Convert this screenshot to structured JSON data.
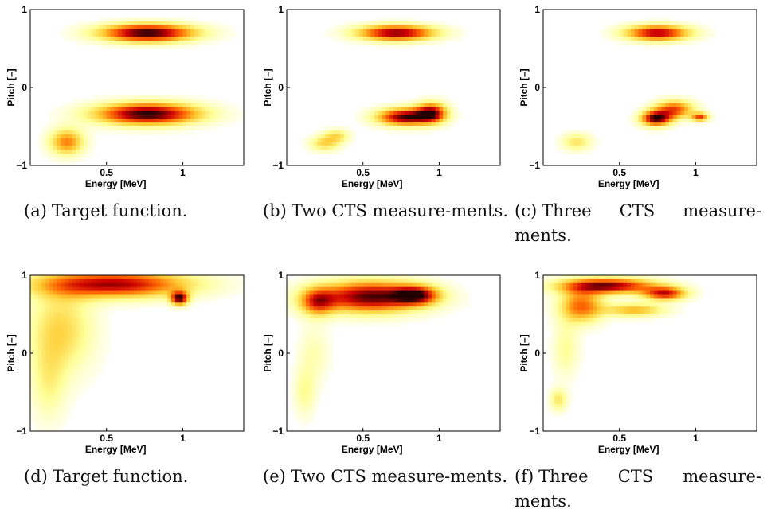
{
  "figure": {
    "panels": [
      {
        "id": "a",
        "label": "(a)",
        "caption": "Target function."
      },
      {
        "id": "b",
        "label": "(b)",
        "caption": "Two CTS measure-ments."
      },
      {
        "id": "c",
        "label": "(c)",
        "caption": "Three CTS measure-ments."
      },
      {
        "id": "d",
        "label": "(d)",
        "caption": "Target function."
      },
      {
        "id": "e",
        "label": "(e)",
        "caption": "Two CTS measure-ments."
      },
      {
        "id": "f",
        "label": "(f)",
        "caption": "Three CTS measure-ments."
      }
    ]
  },
  "chart_data": [
    {
      "type": "heatmap",
      "panel": "a",
      "xlabel": "Energy [MeV]",
      "ylabel": "Pitch [–]",
      "xlim": [
        0,
        1.4
      ],
      "ylim": [
        -1,
        1
      ],
      "xticks": [
        0.5,
        1
      ],
      "yticks": [
        -1,
        0,
        1
      ],
      "xticklabels": [
        "0.5",
        "1"
      ],
      "yticklabels": [
        "−1",
        "0",
        "1"
      ],
      "colormap": [
        "#ffffff",
        "#ffff99",
        "#ffcc33",
        "#ff6600",
        "#cc0000",
        "#200000"
      ],
      "blobs": [
        {
          "x": 0.77,
          "y": 0.7,
          "sx": 0.22,
          "sy": 0.08,
          "amp": 1.0
        },
        {
          "x": 0.77,
          "y": -0.34,
          "sx": 0.24,
          "sy": 0.1,
          "amp": 1.0
        },
        {
          "x": 0.24,
          "y": -0.7,
          "sx": 0.08,
          "sy": 0.12,
          "amp": 0.55
        }
      ]
    },
    {
      "type": "heatmap",
      "panel": "b",
      "xlabel": "Energy [MeV]",
      "ylabel": "Pitch [–]",
      "xlim": [
        0,
        1.4
      ],
      "ylim": [
        -1,
        1
      ],
      "xticks": [
        0.5,
        1
      ],
      "yticks": [
        -1,
        0,
        1
      ],
      "xticklabels": [
        "0.5",
        "1"
      ],
      "yticklabels": [
        "−1",
        "0",
        "1"
      ],
      "colormap": [
        "#ffffff",
        "#ffff99",
        "#ffcc33",
        "#ff6600",
        "#cc0000",
        "#200000"
      ],
      "blobs": [
        {
          "x": 0.72,
          "y": 0.7,
          "sx": 0.18,
          "sy": 0.07,
          "amp": 0.9
        },
        {
          "x": 0.78,
          "y": -0.38,
          "sx": 0.13,
          "sy": 0.08,
          "amp": 0.95
        },
        {
          "x": 0.95,
          "y": -0.32,
          "sx": 0.07,
          "sy": 0.09,
          "amp": 0.75
        },
        {
          "x": 0.25,
          "y": -0.72,
          "sx": 0.07,
          "sy": 0.07,
          "amp": 0.35
        },
        {
          "x": 0.33,
          "y": -0.62,
          "sx": 0.06,
          "sy": 0.06,
          "amp": 0.3
        }
      ]
    },
    {
      "type": "heatmap",
      "panel": "c",
      "xlabel": "Energy [MeV]",
      "ylabel": "Pitch [–]",
      "xlim": [
        0,
        1.4
      ],
      "ylim": [
        -1,
        1
      ],
      "xticks": [
        0.5,
        1
      ],
      "yticks": [
        -1,
        0,
        1
      ],
      "xticklabels": [
        "0.5",
        "1"
      ],
      "yticklabels": [
        "−1",
        "0",
        "1"
      ],
      "colormap": [
        "#ffffff",
        "#ffff99",
        "#ffcc33",
        "#ff6600",
        "#cc0000",
        "#200000"
      ],
      "blobs": [
        {
          "x": 0.75,
          "y": 0.7,
          "sx": 0.15,
          "sy": 0.07,
          "amp": 0.85
        },
        {
          "x": 0.74,
          "y": -0.4,
          "sx": 0.07,
          "sy": 0.07,
          "amp": 0.95
        },
        {
          "x": 0.86,
          "y": -0.28,
          "sx": 0.09,
          "sy": 0.08,
          "amp": 0.65
        },
        {
          "x": 1.03,
          "y": -0.38,
          "sx": 0.04,
          "sy": 0.04,
          "amp": 0.65
        },
        {
          "x": 0.22,
          "y": -0.7,
          "sx": 0.07,
          "sy": 0.08,
          "amp": 0.3
        }
      ]
    },
    {
      "type": "heatmap",
      "panel": "d",
      "xlabel": "Energy [MeV]",
      "ylabel": "Pitch [–]",
      "xlim": [
        0,
        1.4
      ],
      "ylim": [
        -1,
        1
      ],
      "xticks": [
        0.5,
        1
      ],
      "yticks": [
        -1,
        0,
        1
      ],
      "xticklabels": [
        "0.5",
        "1"
      ],
      "yticklabels": [
        "−1",
        "0",
        "1"
      ],
      "colormap": [
        "#ffffff",
        "#ffff99",
        "#ffcc33",
        "#ff6600",
        "#cc0000",
        "#200000"
      ],
      "blobs": [
        {
          "x": 0.55,
          "y": 0.88,
          "sx": 0.35,
          "sy": 0.12,
          "amp": 0.85
        },
        {
          "x": 0.98,
          "y": 0.7,
          "sx": 0.04,
          "sy": 0.06,
          "amp": 0.9
        },
        {
          "x": 0.2,
          "y": 0.3,
          "sx": 0.15,
          "sy": 0.4,
          "amp": 0.35
        },
        {
          "x": 0.12,
          "y": -0.4,
          "sx": 0.08,
          "sy": 0.35,
          "amp": 0.2
        }
      ]
    },
    {
      "type": "heatmap",
      "panel": "e",
      "xlabel": "Energy [MeV]",
      "ylabel": "Pitch [–]",
      "xlim": [
        0,
        1.4
      ],
      "ylim": [
        -1,
        1
      ],
      "xticks": [
        0.5,
        1
      ],
      "yticks": [
        -1,
        0,
        1
      ],
      "xticklabels": [
        "0.5",
        "1"
      ],
      "yticklabels": [
        "−1",
        "0",
        "1"
      ],
      "colormap": [
        "#ffffff",
        "#ffff99",
        "#ffcc33",
        "#ff6600",
        "#cc0000",
        "#200000"
      ],
      "blobs": [
        {
          "x": 0.55,
          "y": 0.72,
          "sx": 0.25,
          "sy": 0.14,
          "amp": 0.95
        },
        {
          "x": 0.85,
          "y": 0.74,
          "sx": 0.1,
          "sy": 0.08,
          "amp": 0.7
        },
        {
          "x": 0.2,
          "y": 0.65,
          "sx": 0.08,
          "sy": 0.12,
          "amp": 0.55
        },
        {
          "x": 0.12,
          "y": -0.5,
          "sx": 0.05,
          "sy": 0.22,
          "amp": 0.2
        },
        {
          "x": 0.18,
          "y": 0.0,
          "sx": 0.07,
          "sy": 0.25,
          "amp": 0.15
        }
      ]
    },
    {
      "type": "heatmap",
      "panel": "f",
      "xlabel": "Energy [MeV]",
      "ylabel": "Pitch [–]",
      "xlim": [
        0,
        1.4
      ],
      "ylim": [
        -1,
        1
      ],
      "xticks": [
        0.5,
        1
      ],
      "yticks": [
        -1,
        0,
        1
      ],
      "xticklabels": [
        "0.5",
        "1"
      ],
      "yticklabels": [
        "−1",
        "0",
        "1"
      ],
      "colormap": [
        "#ffffff",
        "#ffff99",
        "#ffcc33",
        "#ff6600",
        "#cc0000",
        "#200000"
      ],
      "blobs": [
        {
          "x": 0.42,
          "y": 0.86,
          "sx": 0.22,
          "sy": 0.07,
          "amp": 0.9
        },
        {
          "x": 0.8,
          "y": 0.76,
          "sx": 0.1,
          "sy": 0.06,
          "amp": 0.75
        },
        {
          "x": 0.25,
          "y": 0.6,
          "sx": 0.1,
          "sy": 0.15,
          "amp": 0.6
        },
        {
          "x": 0.6,
          "y": 0.55,
          "sx": 0.14,
          "sy": 0.06,
          "amp": 0.45
        },
        {
          "x": 0.1,
          "y": -0.6,
          "sx": 0.04,
          "sy": 0.1,
          "amp": 0.3
        },
        {
          "x": 0.15,
          "y": 0.05,
          "sx": 0.06,
          "sy": 0.25,
          "amp": 0.2
        }
      ]
    }
  ]
}
